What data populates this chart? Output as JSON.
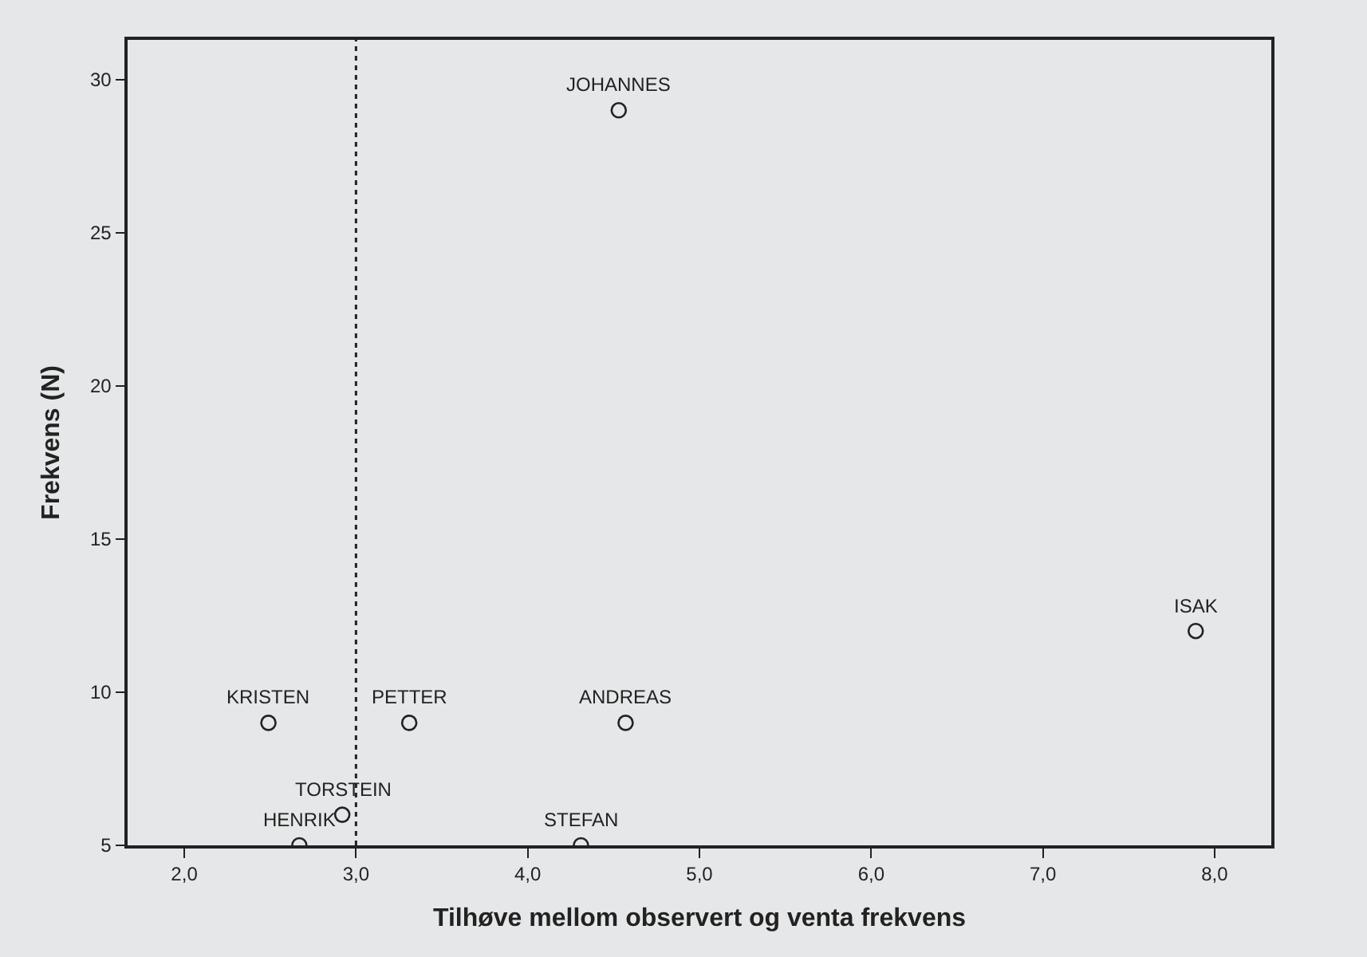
{
  "chart_data": {
    "type": "scatter",
    "xlabel": "Tilhøve mellom observert og venta frekvens",
    "ylabel": "Frekvens (N)",
    "x": [
      4.53,
      7.89,
      2.49,
      3.31,
      4.57,
      2.92,
      2.67,
      4.31
    ],
    "series": [
      {
        "color": "#222222",
        "values": [
          29,
          12,
          9,
          9,
          9,
          6,
          5,
          5
        ]
      }
    ],
    "marker": "circle",
    "legend": false,
    "grid": false,
    "xlim": [
      1.67,
      8.33
    ],
    "xticks": [
      {
        "value": 2,
        "label": "2,0"
      },
      {
        "value": 3,
        "label": "3,0"
      },
      {
        "value": 4,
        "label": "4,0"
      },
      {
        "value": 5,
        "label": "5,0"
      },
      {
        "value": 6,
        "label": "6,0"
      },
      {
        "value": 7,
        "label": "7,0"
      },
      {
        "value": 8,
        "label": "8,0"
      }
    ],
    "ylim": [
      5,
      31.3
    ],
    "yticks": [
      5,
      10,
      15,
      20,
      25,
      30
    ],
    "ref_lines": [
      {
        "axis": "x",
        "value": 3,
        "color": "#222222",
        "line_style": "dotted"
      }
    ],
    "annotations": [
      {
        "text": "JOHANNES",
        "x": 4.53,
        "y": 29
      },
      {
        "text": "ISAK",
        "x": 7.89,
        "y": 12
      },
      {
        "text": "KRISTEN",
        "x": 2.49,
        "y": 9
      },
      {
        "text": "PETTER",
        "x": 3.31,
        "y": 9
      },
      {
        "text": "ANDREAS",
        "x": 4.57,
        "y": 9
      },
      {
        "text": "TORSTEIN",
        "x": 2.92,
        "y": 6
      },
      {
        "text": "HENRIK",
        "x": 2.67,
        "y": 5
      },
      {
        "text": "STEFAN",
        "x": 4.31,
        "y": 5
      }
    ]
  }
}
